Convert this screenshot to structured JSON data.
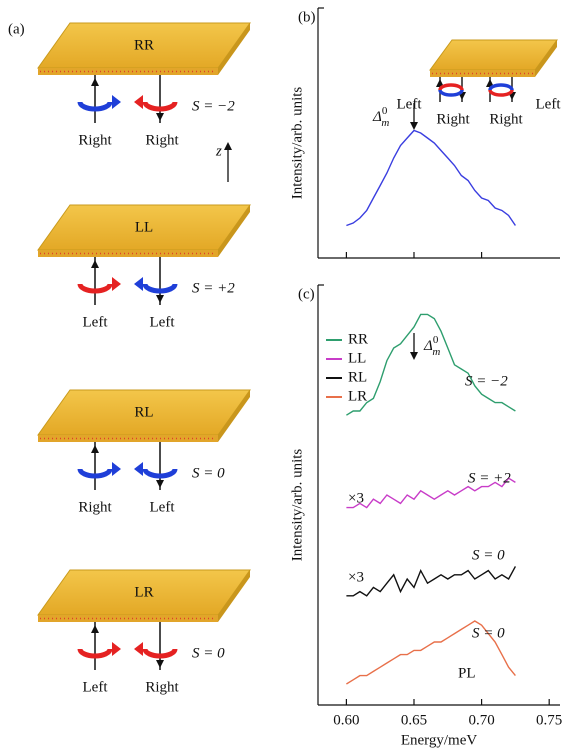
{
  "panel_a": {
    "label": "(a)",
    "axis_label": "z",
    "plates": [
      {
        "name": "RR",
        "left": "Right",
        "right": "Right",
        "spin": "S = −2",
        "left_color": "#1f3fd8",
        "right_color": "#e52222"
      },
      {
        "name": "LL",
        "left": "Left",
        "right": "Left",
        "spin": "S = +2",
        "left_color": "#e52222",
        "right_color": "#1f3fd8"
      },
      {
        "name": "RL",
        "left": "Right",
        "right": "Left",
        "spin": "S = 0",
        "left_color": "#1f3fd8",
        "right_color": "#1f3fd8"
      },
      {
        "name": "LR",
        "left": "Left",
        "right": "Right",
        "spin": "S = 0",
        "left_color": "#e52222",
        "right_color": "#e52222"
      }
    ]
  },
  "chart_data": [
    {
      "type": "line",
      "panel_label": "(b)",
      "ylabel": "Intensity/arb. units",
      "annotation": {
        "symbol": "Δ",
        "superscript": "0",
        "subscript": "m"
      },
      "inset_labels": [
        "Left",
        "Right",
        "Right",
        "Left"
      ],
      "x": [
        0.6,
        0.605,
        0.61,
        0.615,
        0.62,
        0.625,
        0.63,
        0.635,
        0.64,
        0.645,
        0.65,
        0.655,
        0.66,
        0.665,
        0.67,
        0.675,
        0.68,
        0.685,
        0.69,
        0.695,
        0.7,
        0.705,
        0.71,
        0.715,
        0.72,
        0.725
      ],
      "values": [
        0.13,
        0.14,
        0.16,
        0.19,
        0.24,
        0.29,
        0.34,
        0.4,
        0.45,
        0.48,
        0.51,
        0.5,
        0.48,
        0.46,
        0.43,
        0.4,
        0.37,
        0.33,
        0.31,
        0.27,
        0.24,
        0.23,
        0.2,
        0.19,
        0.17,
        0.13
      ],
      "color": "#3a3ee0",
      "xlim": [
        0.579,
        0.758
      ],
      "ylim": [
        0,
        1
      ],
      "xticks": [
        0.6,
        0.65,
        0.7
      ]
    },
    {
      "type": "line",
      "panel_label": "(c)",
      "ylabel": "Intensity/arb. units",
      "xlabel": "Energy/meV",
      "annotation": {
        "symbol": "Δ",
        "superscript": "0",
        "subscript": "m"
      },
      "annotations": [
        "S = −2",
        "S = +2",
        "S = 0",
        "S = 0",
        "×3",
        "×3",
        "PL"
      ],
      "legend": "upper left",
      "x": [
        0.6,
        0.605,
        0.61,
        0.615,
        0.62,
        0.625,
        0.63,
        0.635,
        0.64,
        0.645,
        0.65,
        0.655,
        0.66,
        0.665,
        0.67,
        0.675,
        0.68,
        0.685,
        0.69,
        0.695,
        0.7,
        0.705,
        0.71,
        0.715,
        0.72,
        0.725
      ],
      "series": [
        {
          "name": "RR",
          "color": "#2e9e6e",
          "values": [
            0.69,
            0.7,
            0.7,
            0.72,
            0.73,
            0.77,
            0.82,
            0.85,
            0.86,
            0.88,
            0.9,
            0.93,
            0.93,
            0.92,
            0.89,
            0.85,
            0.81,
            0.8,
            0.79,
            0.76,
            0.74,
            0.73,
            0.72,
            0.72,
            0.71,
            0.7
          ]
        },
        {
          "name": "LL",
          "color": "#c83cc8",
          "values": [
            0.47,
            0.47,
            0.48,
            0.47,
            0.49,
            0.48,
            0.5,
            0.49,
            0.48,
            0.5,
            0.49,
            0.51,
            0.5,
            0.49,
            0.5,
            0.51,
            0.5,
            0.51,
            0.52,
            0.51,
            0.52,
            0.52,
            0.53,
            0.52,
            0.54,
            0.53
          ]
        },
        {
          "name": "RL",
          "color": "#111111",
          "values": [
            0.26,
            0.26,
            0.27,
            0.26,
            0.28,
            0.27,
            0.29,
            0.31,
            0.27,
            0.3,
            0.28,
            0.32,
            0.29,
            0.3,
            0.31,
            0.3,
            0.31,
            0.31,
            0.32,
            0.3,
            0.31,
            0.32,
            0.3,
            0.31,
            0.3,
            0.33
          ]
        },
        {
          "name": "LR",
          "color": "#e8704a",
          "values": [
            0.05,
            0.06,
            0.07,
            0.07,
            0.08,
            0.09,
            0.1,
            0.11,
            0.12,
            0.12,
            0.13,
            0.13,
            0.14,
            0.15,
            0.15,
            0.16,
            0.17,
            0.18,
            0.19,
            0.2,
            0.19,
            0.17,
            0.15,
            0.12,
            0.09,
            0.07
          ]
        }
      ],
      "xlim": [
        0.579,
        0.758
      ],
      "ylim": [
        0,
        1
      ],
      "xticks": [
        {
          "value": 0.6,
          "label": "0.60"
        },
        {
          "value": 0.65,
          "label": "0.65"
        },
        {
          "value": 0.7,
          "label": "0.70"
        },
        {
          "value": 0.75,
          "label": "0.75"
        }
      ]
    }
  ]
}
